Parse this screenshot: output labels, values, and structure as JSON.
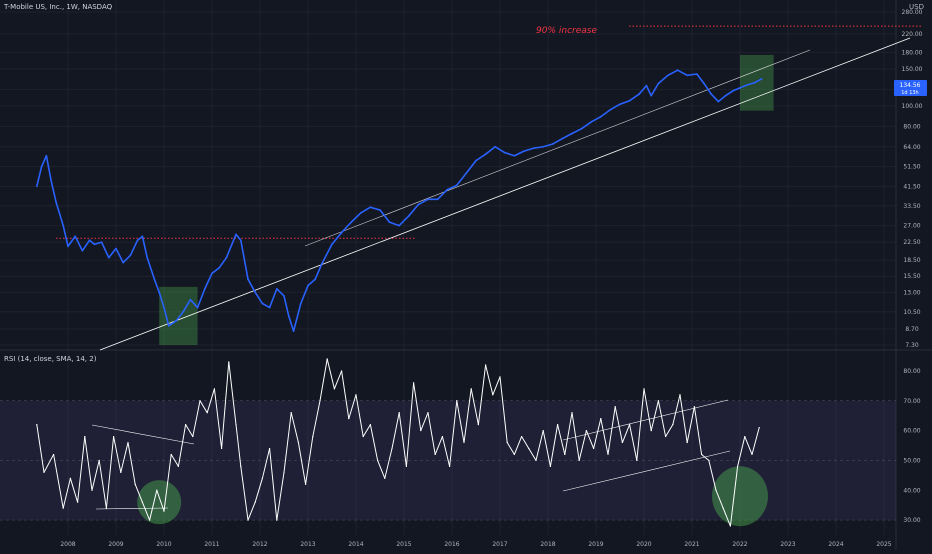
{
  "header": {
    "symbol_title": "T-Mobile US, Inc., 1W, NASDAQ",
    "currency": "USD"
  },
  "rsi_header": {
    "title": "RSI (14, close, SMA, 14, 2)"
  },
  "annotations": {
    "increase_label": "90% increase"
  },
  "price_badge": {
    "price": "134.56",
    "countdown": "1d 13h"
  },
  "colors": {
    "background": "#131722",
    "price_line": "#2962ff",
    "rsi_line": "#ffffff",
    "dotted_level": "#f23645",
    "rsi_band": "#7e57c2",
    "highlight_box": "#4caf50",
    "trend_line": "#ffffff"
  },
  "chart_data": [
    {
      "type": "line",
      "name": "price",
      "y_scale": "log",
      "ylim": [
        7.3,
        280
      ],
      "xlim": [
        2007.0,
        2025.25
      ],
      "x_ticks": [
        "2008",
        "2009",
        "2010",
        "2011",
        "2012",
        "2013",
        "2014",
        "2015",
        "2016",
        "2017",
        "2018",
        "2019",
        "2020",
        "2021",
        "2022",
        "2023",
        "2024",
        "2025"
      ],
      "y_ticks": [
        "280.00",
        "220.00",
        "180.00",
        "150.00",
        "120.00",
        "100.00",
        "80.00",
        "64.00",
        "51.50",
        "41.50",
        "33.50",
        "27.00",
        "22.50",
        "18.50",
        "15.50",
        "13.00",
        "10.50",
        "8.70",
        "7.30"
      ],
      "x": [
        2007.35,
        2007.45,
        2007.55,
        2007.65,
        2007.75,
        2007.9,
        2008.0,
        2008.15,
        2008.3,
        2008.45,
        2008.55,
        2008.7,
        2008.85,
        2009.0,
        2009.15,
        2009.3,
        2009.45,
        2009.55,
        2009.65,
        2009.8,
        2009.9,
        2010.0,
        2010.1,
        2010.25,
        2010.4,
        2010.55,
        2010.7,
        2010.85,
        2011.0,
        2011.15,
        2011.3,
        2011.5,
        2011.6,
        2011.75,
        2011.9,
        2012.05,
        2012.2,
        2012.35,
        2012.5,
        2012.6,
        2012.7,
        2012.85,
        2013.0,
        2013.15,
        2013.3,
        2013.5,
        2013.7,
        2013.9,
        2014.1,
        2014.3,
        2014.5,
        2014.7,
        2014.9,
        2015.1,
        2015.3,
        2015.5,
        2015.7,
        2015.9,
        2016.1,
        2016.3,
        2016.5,
        2016.7,
        2016.9,
        2017.1,
        2017.3,
        2017.5,
        2017.7,
        2017.9,
        2018.1,
        2018.3,
        2018.5,
        2018.7,
        2018.9,
        2019.1,
        2019.3,
        2019.5,
        2019.7,
        2019.9,
        2020.05,
        2020.15,
        2020.3,
        2020.5,
        2020.7,
        2020.9,
        2021.1,
        2021.25,
        2021.4,
        2021.55,
        2021.7,
        2021.85,
        2022.0,
        2022.15,
        2022.3,
        2022.45
      ],
      "y": [
        41.5,
        51.5,
        58,
        44,
        35,
        27,
        21.5,
        24,
        20.5,
        23,
        22,
        22.5,
        19,
        21,
        18,
        19.5,
        23,
        24,
        19,
        15,
        13,
        11,
        9,
        9.5,
        10.5,
        12,
        11,
        13.5,
        16,
        17,
        19,
        24.5,
        23,
        15,
        13,
        11.5,
        11,
        13.5,
        12.5,
        10,
        8.5,
        11.5,
        14,
        15,
        18,
        22,
        25,
        28,
        31,
        33,
        32,
        28,
        27,
        30,
        34,
        36,
        36,
        40,
        42,
        48,
        55,
        59,
        64,
        60,
        58,
        61,
        63,
        64,
        66,
        70,
        74,
        78,
        84,
        89,
        96,
        102,
        106,
        114,
        125,
        112,
        128,
        140,
        148,
        140,
        142,
        128,
        114,
        105,
        112,
        118,
        122,
        126,
        129,
        134.56
      ]
    },
    {
      "type": "line",
      "name": "RSI (14, close, SMA, 14, 2)",
      "ylim": [
        25,
        85
      ],
      "y_ticks": [
        "80.00",
        "70.00",
        "60.00",
        "50.00",
        "40.00",
        "30.00"
      ],
      "overbought": 70,
      "oversold": 30,
      "x": [
        2007.35,
        2007.5,
        2007.7,
        2007.9,
        2008.05,
        2008.2,
        2008.35,
        2008.5,
        2008.65,
        2008.8,
        2008.95,
        2009.1,
        2009.25,
        2009.4,
        2009.55,
        2009.7,
        2009.85,
        2010.0,
        2010.15,
        2010.3,
        2010.45,
        2010.6,
        2010.75,
        2010.9,
        2011.05,
        2011.2,
        2011.35,
        2011.5,
        2011.6,
        2011.75,
        2011.9,
        2012.05,
        2012.2,
        2012.35,
        2012.5,
        2012.65,
        2012.8,
        2012.95,
        2013.1,
        2013.25,
        2013.4,
        2013.55,
        2013.7,
        2013.85,
        2014.0,
        2014.15,
        2014.3,
        2014.45,
        2014.6,
        2014.75,
        2014.9,
        2015.05,
        2015.2,
        2015.35,
        2015.5,
        2015.65,
        2015.8,
        2015.95,
        2016.1,
        2016.25,
        2016.4,
        2016.55,
        2016.7,
        2016.85,
        2017.0,
        2017.15,
        2017.3,
        2017.45,
        2017.6,
        2017.75,
        2017.9,
        2018.05,
        2018.2,
        2018.35,
        2018.5,
        2018.65,
        2018.8,
        2018.95,
        2019.1,
        2019.25,
        2019.4,
        2019.55,
        2019.7,
        2019.85,
        2020.0,
        2020.15,
        2020.3,
        2020.45,
        2020.6,
        2020.75,
        2020.9,
        2021.05,
        2021.2,
        2021.35,
        2021.5,
        2021.65,
        2021.8,
        2021.95,
        2022.1,
        2022.25,
        2022.4
      ],
      "y": [
        62,
        46,
        52,
        34,
        44,
        36,
        58,
        40,
        50,
        34,
        58,
        46,
        56,
        42,
        36,
        30,
        40,
        33,
        52,
        48,
        62,
        58,
        70,
        66,
        74,
        54,
        83,
        62,
        48,
        30,
        36,
        44,
        54,
        30,
        46,
        66,
        56,
        42,
        58,
        70,
        84,
        74,
        80,
        64,
        72,
        58,
        62,
        50,
        44,
        54,
        66,
        48,
        76,
        60,
        66,
        52,
        58,
        48,
        70,
        56,
        74,
        62,
        82,
        72,
        78,
        56,
        52,
        58,
        54,
        50,
        60,
        48,
        62,
        52,
        66,
        50,
        60,
        54,
        64,
        52,
        68,
        56,
        62,
        50,
        74,
        60,
        70,
        58,
        62,
        72,
        56,
        68,
        52,
        50,
        40,
        34,
        28,
        48,
        58,
        52,
        61
      ]
    }
  ]
}
